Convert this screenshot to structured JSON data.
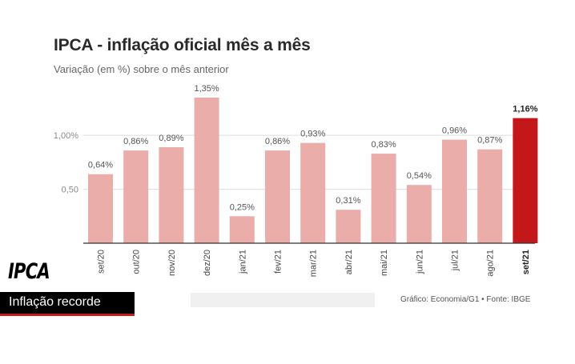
{
  "title": "IPCA - inflação oficial mês a mês",
  "subtitle": "Variação (em %) sobre o mês anterior",
  "source": "Gráfico: Economia/G1 • Fonte: IBGE",
  "caption": {
    "hashtag": "IPCA",
    "label": "Inflação recorde"
  },
  "colors": {
    "bar": "#eaadaa",
    "highlight": "#c3171a",
    "grid": "#dddddd",
    "axis": "#333333"
  },
  "chart_data": {
    "type": "bar",
    "categories": [
      "set/20",
      "out/20",
      "nov/20",
      "dez/20",
      "jan/21",
      "fev/21",
      "mar/21",
      "abr/21",
      "mai/21",
      "jun/21",
      "jul/21",
      "ago/21",
      "set/21"
    ],
    "values": [
      0.64,
      0.86,
      0.89,
      1.35,
      0.25,
      0.86,
      0.93,
      0.31,
      0.83,
      0.54,
      0.96,
      0.87,
      1.16
    ],
    "value_labels": [
      "0,64%",
      "0,86%",
      "0,89%",
      "1,35%",
      "0,25%",
      "0,86%",
      "0,93%",
      "0,31%",
      "0,83%",
      "0,54%",
      "0,96%",
      "0,87%",
      "1,16%"
    ],
    "highlight_index": 12,
    "yticks": [
      0.5,
      1.0
    ],
    "ytick_labels": [
      "0,50",
      "1,00%"
    ],
    "ylim": [
      0,
      1.35
    ],
    "grid": true
  }
}
